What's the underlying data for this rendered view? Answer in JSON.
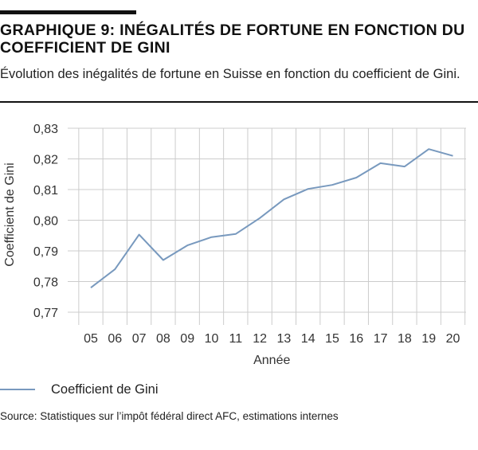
{
  "header": {
    "title": "GRAPHIQUE 9: INÉGALITÉS DE FORTUNE EN FONCTION DU COEFFICIENT DE GINI",
    "subtitle": "Évolution des inégalités de fortune en Suisse en fonction du coefficient de Gini."
  },
  "chart_data": {
    "type": "line",
    "categories": [
      "05",
      "06",
      "07",
      "08",
      "09",
      "10",
      "11",
      "12",
      "13",
      "14",
      "15",
      "16",
      "17",
      "18",
      "19",
      "20"
    ],
    "series": [
      {
        "name": "Coefficient de Gini",
        "color": "#7899be",
        "values": [
          0.778,
          0.784,
          0.7953,
          0.787,
          0.7918,
          0.7945,
          0.7955,
          0.8007,
          0.8068,
          0.8102,
          0.8115,
          0.8139,
          0.8186,
          0.8175,
          0.8232,
          0.821
        ]
      }
    ],
    "ylim": [
      0.77,
      0.83
    ],
    "yticks": [
      "0,83",
      "0,82",
      "0,81",
      "0,80",
      "0,79",
      "0,78",
      "0,77"
    ],
    "xlabel": "Année",
    "ylabel": "Coefficient de Gini",
    "grid": true,
    "legend_position": "bottom-left"
  },
  "legend": {
    "label": "Coefficient de Gini"
  },
  "footer": {
    "source": "Source: Statistiques sur l’impôt fédéral direct AFC, estimations internes"
  },
  "colors": {
    "line": "#7899be",
    "grid": "#cccccc",
    "rule": "#111111"
  }
}
